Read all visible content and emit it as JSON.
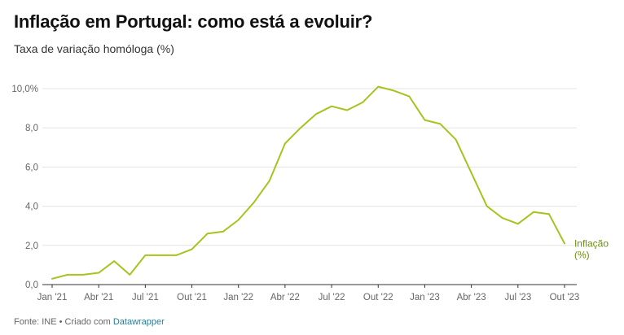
{
  "title": "Inflação em Portugal: como está a evoluir?",
  "subtitle": "Taxa de variação homóloga (%)",
  "footer": {
    "prefix": "Fonte: INE • Criado com ",
    "link": "Datawrapper"
  },
  "colors": {
    "line": "#a8c21f",
    "label": "#6b8e12",
    "grid": "#e3e3e3",
    "baseline": "#333333"
  },
  "chart_data": {
    "type": "line",
    "ylim": [
      0,
      10
    ],
    "yticks": [
      0,
      2,
      4,
      6,
      8,
      10
    ],
    "ytick_labels": [
      "0,0",
      "2,0",
      "4,0",
      "6,0",
      "8,0",
      "10,0%"
    ],
    "xtick_labels": [
      "Jan '21",
      "Abr '21",
      "Jul '21",
      "Out '21",
      "Jan '22",
      "Abr '22",
      "Jul '22",
      "Out '22",
      "Jan '23",
      "Abr '23",
      "Jul '23",
      "Out '23"
    ],
    "grid": true,
    "legend": "none",
    "series": [
      {
        "name": "Inflação (%)",
        "name_lines": [
          "Inflação",
          "(%)"
        ],
        "x": [
          "2021-01",
          "2021-02",
          "2021-03",
          "2021-04",
          "2021-05",
          "2021-06",
          "2021-07",
          "2021-08",
          "2021-09",
          "2021-10",
          "2021-11",
          "2021-12",
          "2022-01",
          "2022-02",
          "2022-03",
          "2022-04",
          "2022-05",
          "2022-06",
          "2022-07",
          "2022-08",
          "2022-09",
          "2022-10",
          "2022-11",
          "2022-12",
          "2023-01",
          "2023-02",
          "2023-03",
          "2023-04",
          "2023-05",
          "2023-06",
          "2023-07",
          "2023-08",
          "2023-09",
          "2023-10"
        ],
        "values": [
          0.3,
          0.5,
          0.5,
          0.6,
          1.2,
          0.5,
          1.5,
          1.5,
          1.5,
          1.8,
          2.6,
          2.7,
          3.3,
          4.2,
          5.3,
          7.2,
          8.0,
          8.7,
          9.1,
          8.9,
          9.3,
          10.1,
          9.9,
          9.6,
          8.4,
          8.2,
          7.4,
          5.7,
          4.0,
          3.4,
          3.1,
          3.7,
          3.6,
          2.1
        ]
      }
    ]
  }
}
